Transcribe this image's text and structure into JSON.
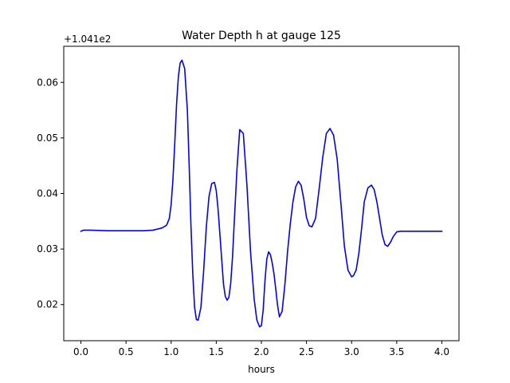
{
  "chart_data": {
    "type": "line",
    "title": "Water Depth h at gauge 125",
    "xlabel": "hours",
    "ylabel": "",
    "offset_text": "+1.041e2",
    "xlim": [
      -0.19,
      4.19
    ],
    "ylim": [
      0.0135,
      0.0665
    ],
    "x_ticks": [
      0.0,
      0.5,
      1.0,
      1.5,
      2.0,
      2.5,
      3.0,
      3.5,
      4.0
    ],
    "x_tick_labels": [
      "0.0",
      "0.5",
      "1.0",
      "1.5",
      "2.0",
      "2.5",
      "3.0",
      "3.5",
      "4.0"
    ],
    "y_ticks": [
      0.02,
      0.03,
      0.04,
      0.05,
      0.06
    ],
    "y_tick_labels": [
      "0.02",
      "0.03",
      "0.04",
      "0.05",
      "0.06"
    ],
    "grid": false,
    "legend": "none",
    "series": [
      {
        "color": "#0000ff",
        "x": [
          0.0,
          0.03,
          0.1,
          0.3,
          0.5,
          0.7,
          0.8,
          0.9,
          0.95,
          0.98,
          1.0,
          1.02,
          1.04,
          1.06,
          1.08,
          1.1,
          1.12,
          1.15,
          1.18,
          1.2,
          1.22,
          1.24,
          1.26,
          1.28,
          1.3,
          1.33,
          1.36,
          1.39,
          1.42,
          1.45,
          1.48,
          1.5,
          1.52,
          1.55,
          1.58,
          1.6,
          1.62,
          1.64,
          1.66,
          1.68,
          1.7,
          1.73,
          1.76,
          1.8,
          1.84,
          1.88,
          1.92,
          1.95,
          1.98,
          2.0,
          2.02,
          2.04,
          2.06,
          2.08,
          2.1,
          2.12,
          2.14,
          2.16,
          2.18,
          2.2,
          2.23,
          2.26,
          2.29,
          2.32,
          2.35,
          2.38,
          2.41,
          2.44,
          2.47,
          2.5,
          2.53,
          2.56,
          2.6,
          2.64,
          2.68,
          2.72,
          2.76,
          2.8,
          2.84,
          2.88,
          2.92,
          2.96,
          3.0,
          3.02,
          3.05,
          3.08,
          3.11,
          3.14,
          3.18,
          3.22,
          3.25,
          3.28,
          3.31,
          3.34,
          3.37,
          3.4,
          3.43,
          3.46,
          3.5,
          3.54,
          3.58,
          3.62,
          3.66,
          3.7,
          3.73,
          3.76,
          3.79,
          3.82,
          3.85,
          3.88,
          3.91,
          3.94,
          3.97,
          4.0
        ],
        "values": [
          0.0332,
          0.0334,
          0.0334,
          0.0333,
          0.0333,
          0.0333,
          0.0334,
          0.0338,
          0.0343,
          0.0355,
          0.038,
          0.0425,
          0.049,
          0.056,
          0.061,
          0.0635,
          0.064,
          0.0625,
          0.055,
          0.045,
          0.034,
          0.0255,
          0.0195,
          0.0173,
          0.0172,
          0.0195,
          0.026,
          0.034,
          0.0395,
          0.0418,
          0.042,
          0.0405,
          0.0372,
          0.0305,
          0.0237,
          0.0215,
          0.0208,
          0.0213,
          0.0238,
          0.0285,
          0.035,
          0.0445,
          0.0515,
          0.0508,
          0.0415,
          0.0295,
          0.021,
          0.0172,
          0.016,
          0.0162,
          0.019,
          0.0243,
          0.0282,
          0.0295,
          0.029,
          0.0275,
          0.0255,
          0.0227,
          0.0198,
          0.0178,
          0.0188,
          0.0235,
          0.0295,
          0.0345,
          0.0385,
          0.0412,
          0.0422,
          0.0415,
          0.039,
          0.0357,
          0.0342,
          0.034,
          0.0355,
          0.0408,
          0.0465,
          0.0508,
          0.0517,
          0.0505,
          0.0462,
          0.0385,
          0.0305,
          0.0262,
          0.025,
          0.0252,
          0.0262,
          0.0292,
          0.0336,
          0.0385,
          0.041,
          0.0415,
          0.0407,
          0.0385,
          0.0355,
          0.0325,
          0.0308,
          0.0305,
          0.0312,
          0.0322,
          0.0331,
          0.0332,
          0.0332,
          0.0332,
          0.0332,
          0.0332,
          0.0332,
          0.0332,
          0.0332,
          0.0332,
          0.0332,
          0.0332,
          0.0332,
          0.0332,
          0.0332,
          0.0332
        ]
      }
    ]
  }
}
